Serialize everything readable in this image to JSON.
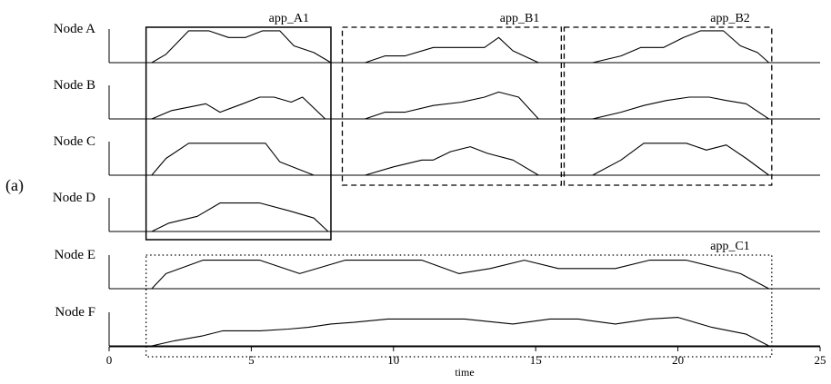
{
  "panel_label": "(a)",
  "chart_data": {
    "type": "line",
    "xlabel": "time",
    "xlim": [
      0,
      25
    ],
    "xticks": [
      0,
      5,
      10,
      15,
      20,
      25
    ],
    "grid": false,
    "series": [
      {
        "name": "Node A",
        "x": [
          1.5,
          2,
          2.8,
          3.5,
          4.2,
          4.8,
          5.4,
          6,
          6.5,
          7.2,
          7.8
        ],
        "y": [
          0,
          0.25,
          0.95,
          0.95,
          0.75,
          0.75,
          0.95,
          0.95,
          0.5,
          0.3,
          0
        ]
      },
      {
        "name": "Node A",
        "x": [
          9,
          9.7,
          10.4,
          11.4,
          12.4,
          13.2,
          13.7,
          14.2,
          15.1
        ],
        "y": [
          0,
          0.2,
          0.2,
          0.45,
          0.45,
          0.45,
          0.75,
          0.35,
          0
        ]
      },
      {
        "name": "Node A",
        "x": [
          17,
          18,
          18.7,
          19.5,
          20.2,
          20.8,
          21.6,
          22.2,
          22.8,
          23.2
        ],
        "y": [
          0,
          0.2,
          0.45,
          0.45,
          0.75,
          0.95,
          0.95,
          0.5,
          0.3,
          0
        ]
      },
      {
        "name": "Node B",
        "x": [
          1.5,
          2.2,
          3.4,
          3.9,
          4.7,
          5.3,
          5.8,
          6.4,
          6.8,
          7.6
        ],
        "y": [
          0,
          0.25,
          0.45,
          0.2,
          0.45,
          0.65,
          0.65,
          0.5,
          0.65,
          0
        ]
      },
      {
        "name": "Node B",
        "x": [
          9,
          9.7,
          10.4,
          11.4,
          12.4,
          13.2,
          13.7,
          14.4,
          15.1
        ],
        "y": [
          0,
          0.2,
          0.2,
          0.4,
          0.5,
          0.65,
          0.8,
          0.65,
          0
        ]
      },
      {
        "name": "Node B",
        "x": [
          17,
          18,
          18.8,
          19.6,
          20.4,
          21.1,
          21.7,
          22.4,
          23.2
        ],
        "y": [
          0,
          0.2,
          0.4,
          0.55,
          0.65,
          0.65,
          0.55,
          0.45,
          0
        ]
      },
      {
        "name": "Node C",
        "x": [
          1.5,
          2,
          2.8,
          3.8,
          4.8,
          5.5,
          6,
          6.6,
          7.2
        ],
        "y": [
          0,
          0.5,
          0.95,
          0.95,
          0.95,
          0.95,
          0.4,
          0.2,
          0
        ]
      },
      {
        "name": "Node C",
        "x": [
          9,
          10,
          11,
          11.4,
          12,
          12.7,
          13.3,
          14.2,
          15.1
        ],
        "y": [
          0,
          0.25,
          0.45,
          0.45,
          0.7,
          0.85,
          0.65,
          0.45,
          0
        ]
      },
      {
        "name": "Node C",
        "x": [
          17,
          18,
          18.8,
          19.5,
          20.3,
          21,
          21.7,
          22.4,
          23.2
        ],
        "y": [
          0,
          0.45,
          0.95,
          0.95,
          0.95,
          0.75,
          0.9,
          0.5,
          0
        ]
      },
      {
        "name": "Node D",
        "x": [
          1.5,
          2.1,
          3.1,
          3.9,
          4.6,
          5.3,
          6.4,
          7.2,
          7.7
        ],
        "y": [
          0,
          0.25,
          0.45,
          0.85,
          0.85,
          0.85,
          0.6,
          0.4,
          0
        ]
      },
      {
        "name": "Node E",
        "x": [
          1.5,
          2,
          3.3,
          4.3,
          5.3,
          6.7,
          8.3,
          8.8,
          9.8,
          11,
          12.3,
          13.4,
          14.6,
          15.8,
          16.8,
          17.8,
          19,
          20.3,
          22.2,
          23.2
        ],
        "y": [
          0,
          0.45,
          0.85,
          0.85,
          0.85,
          0.45,
          0.85,
          0.85,
          0.85,
          0.85,
          0.45,
          0.6,
          0.85,
          0.6,
          0.6,
          0.6,
          0.85,
          0.85,
          0.45,
          0
        ]
      },
      {
        "name": "Node F",
        "x": [
          1.5,
          2.3,
          3.3,
          4,
          5.3,
          6.3,
          7,
          7.8,
          8.6,
          9.8,
          11,
          12.5,
          14.2,
          15.5,
          16.5,
          17.8,
          19,
          20,
          21.2,
          22.4,
          23.2
        ],
        "y": [
          0,
          0.15,
          0.3,
          0.45,
          0.45,
          0.5,
          0.55,
          0.65,
          0.7,
          0.8,
          0.8,
          0.8,
          0.65,
          0.8,
          0.8,
          0.65,
          0.8,
          0.85,
          0.55,
          0.35,
          0
        ]
      }
    ],
    "annotations": [
      "app_A1",
      "app_B1",
      "app_B2",
      "app_C1"
    ]
  },
  "rows": [
    {
      "label": "Node A"
    },
    {
      "label": "Node B"
    },
    {
      "label": "Node C"
    },
    {
      "label": "Node D"
    },
    {
      "label": "Node E"
    },
    {
      "label": "Node F"
    }
  ],
  "boxes": [
    {
      "label": "app_A1",
      "style": "solid",
      "x0": 1.3,
      "x1": 7.8,
      "rows": [
        0,
        3
      ]
    },
    {
      "label": "app_B1",
      "style": "dashed",
      "x0": 8.2,
      "x1": 15.9,
      "rows": [
        0,
        2
      ]
    },
    {
      "label": "app_B2",
      "style": "dashed",
      "x0": 16.0,
      "x1": 23.3,
      "rows": [
        0,
        2
      ]
    },
    {
      "label": "app_C1",
      "style": "dotted",
      "x0": 1.3,
      "x1": 23.3,
      "rows": [
        4,
        5
      ]
    }
  ],
  "colors": {
    "line": "#000000",
    "background": "#ffffff"
  }
}
